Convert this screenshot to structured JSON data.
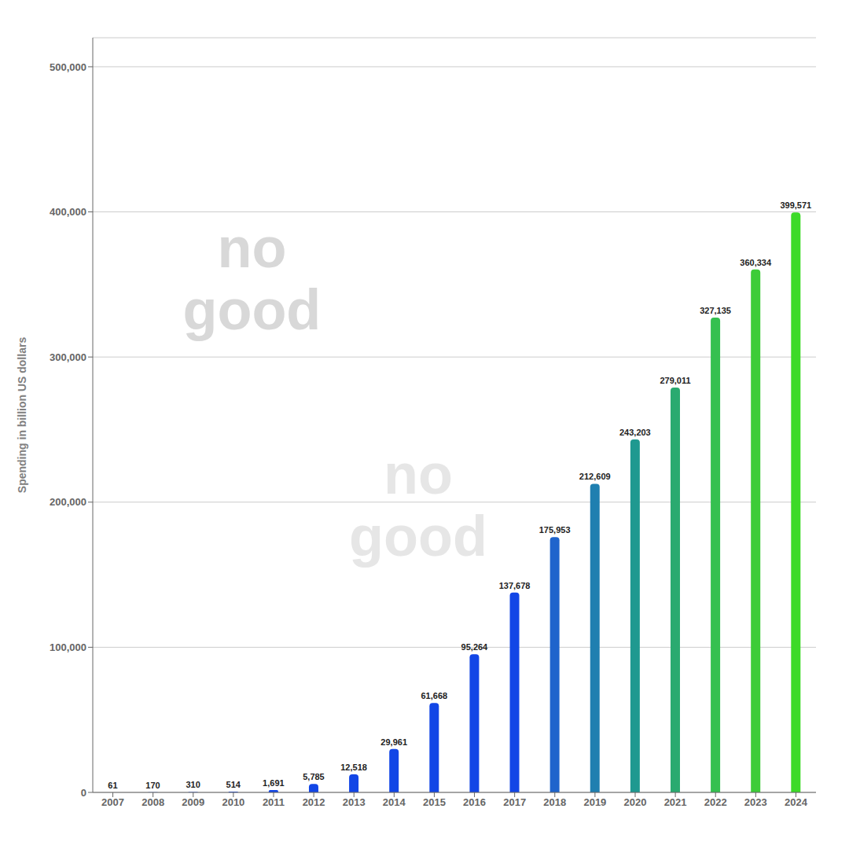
{
  "chart_data": {
    "type": "bar",
    "ylabel": "Spending in billion US dollars",
    "categories": [
      "2007",
      "2008",
      "2009",
      "2010",
      "2011",
      "2012",
      "2013",
      "2014",
      "2015",
      "2016",
      "2017",
      "2018",
      "2019",
      "2020",
      "2021",
      "2022",
      "2023",
      "2024"
    ],
    "values": [
      61,
      170,
      310,
      514,
      1691,
      5785,
      12518,
      29961,
      61668,
      95264,
      137678,
      175953,
      212609,
      243203,
      279011,
      327135,
      360334,
      399571
    ],
    "value_labels": [
      "61",
      "170",
      "310",
      "514",
      "1,691",
      "5,785",
      "12,518",
      "29,961",
      "61,668",
      "95,264",
      "137,678",
      "175,953",
      "212,609",
      "243,203",
      "279,011",
      "327,135",
      "360,334",
      "399,571"
    ],
    "colors": [
      "#1246e6",
      "#1246e6",
      "#1246e6",
      "#1246e6",
      "#1246e6",
      "#1246e6",
      "#1246e6",
      "#1246e6",
      "#1246e6",
      "#1246e6",
      "#1246e6",
      "#1f64cc",
      "#1f7fb0",
      "#1f9990",
      "#2aaa70",
      "#35c050",
      "#3dcc38",
      "#3dda28"
    ],
    "ylim": [
      0,
      520000
    ],
    "yticks": [
      0,
      {
        "value": 100000,
        "label": "100,000"
      },
      {
        "value": 200000,
        "label": "200,000"
      },
      {
        "value": 300000,
        "label": "300,000"
      },
      {
        "value": 400000,
        "label": "400,000"
      },
      {
        "value": 500000,
        "label": "500,000"
      }
    ],
    "grid": true,
    "data_labels": true,
    "annotations": [
      "no\ngood",
      "no\ngood"
    ]
  }
}
